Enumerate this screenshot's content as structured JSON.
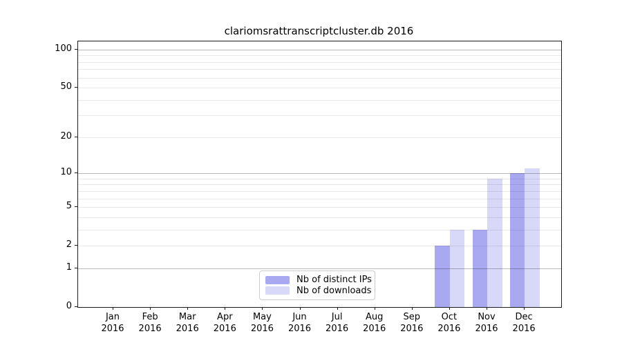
{
  "chart_data": {
    "type": "bar",
    "title": "clariomsrattranscriptcluster.db 2016",
    "year": "2016",
    "categories": [
      "Jan",
      "Feb",
      "Mar",
      "Apr",
      "May",
      "Jun",
      "Jul",
      "Aug",
      "Sep",
      "Oct",
      "Nov",
      "Dec"
    ],
    "series": [
      {
        "name": "Nb of distinct IPs",
        "color": "#a9a9f2",
        "values": [
          0,
          0,
          0,
          0,
          0,
          0,
          0,
          0,
          0,
          2,
          3,
          10
        ]
      },
      {
        "name": "Nb of downloads",
        "color": "#d8d8f8",
        "values": [
          0,
          0,
          0,
          0,
          0,
          0,
          0,
          0,
          0,
          3,
          9,
          11
        ]
      }
    ],
    "yscale": "log1p",
    "ylim": [
      0,
      115
    ],
    "y_tick_values": [
      0,
      1,
      2,
      5,
      10,
      20,
      50,
      100
    ],
    "y_tick_labels": [
      "0",
      "1",
      "2",
      "5",
      "10",
      "20",
      "50",
      "100"
    ],
    "y_major_gridlines": [
      1,
      10,
      100
    ],
    "y_minor_gridlines": [
      2,
      3,
      4,
      5,
      6,
      7,
      8,
      9,
      20,
      30,
      40,
      50,
      60,
      70,
      80,
      90
    ],
    "grid": true,
    "legend_position": "lower center",
    "xlabel": "",
    "ylabel": ""
  },
  "colors": {
    "spine": "#1a1a1a",
    "background": "#ffffff",
    "distinct_ips": "#a9a9f2",
    "downloads": "#d8d8f8"
  }
}
